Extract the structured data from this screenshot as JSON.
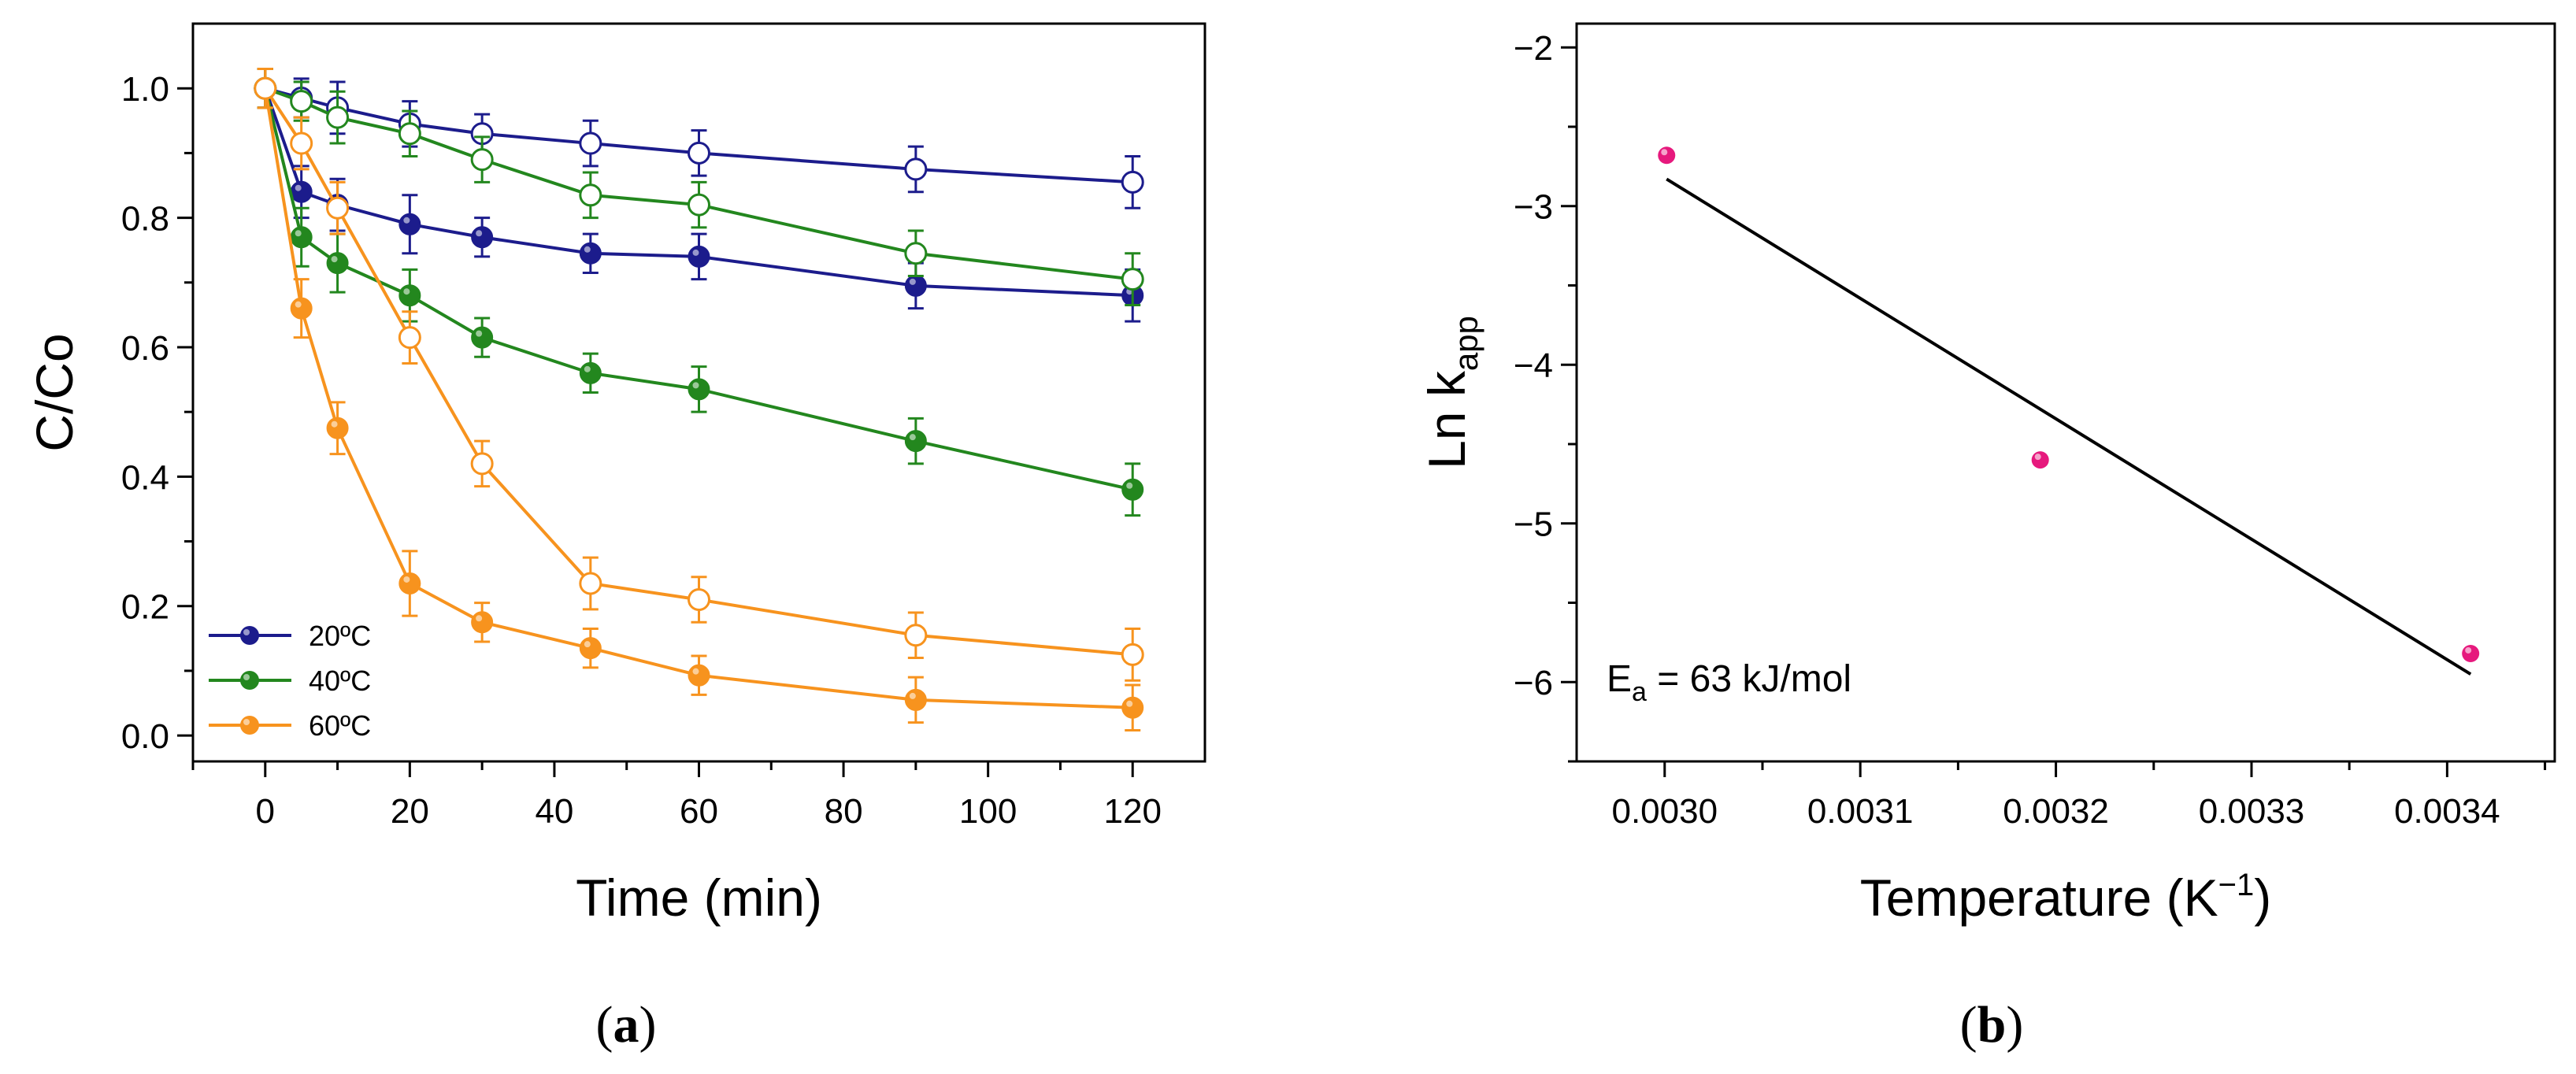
{
  "chart_data": [
    {
      "type": "line",
      "panel": "a",
      "caption_open": "(",
      "caption": "a",
      "caption_close": ")",
      "xlabel": "Time (min)",
      "ylabel": "C/Co",
      "xlim": [
        -10,
        130
      ],
      "ylim": [
        -0.04,
        1.1
      ],
      "xticks": [
        0,
        20,
        40,
        60,
        80,
        100,
        120
      ],
      "yticks": [
        0.0,
        0.2,
        0.4,
        0.6,
        0.8,
        1.0
      ],
      "x": [
        0,
        5,
        10,
        20,
        30,
        45,
        60,
        90,
        120
      ],
      "series": [
        {
          "name": "20ºC",
          "variant": "filled",
          "color": "#1c1c8c",
          "values": [
            1.0,
            0.84,
            0.82,
            0.79,
            0.77,
            0.745,
            0.74,
            0.695,
            0.68
          ],
          "errors": [
            0.03,
            0.04,
            0.04,
            0.045,
            0.03,
            0.03,
            0.035,
            0.035,
            0.04
          ]
        },
        {
          "name": "20ºC",
          "variant": "open",
          "color": "#1c1c8c",
          "values": [
            1.0,
            0.985,
            0.97,
            0.945,
            0.93,
            0.915,
            0.9,
            0.875,
            0.855
          ],
          "errors": [
            0.03,
            0.03,
            0.04,
            0.035,
            0.03,
            0.035,
            0.035,
            0.035,
            0.04
          ]
        },
        {
          "name": "40ºC",
          "variant": "filled",
          "color": "#23871e",
          "values": [
            1.0,
            0.77,
            0.73,
            0.68,
            0.615,
            0.56,
            0.535,
            0.455,
            0.38
          ],
          "errors": [
            0.03,
            0.045,
            0.045,
            0.04,
            0.03,
            0.03,
            0.035,
            0.035,
            0.04
          ]
        },
        {
          "name": "40ºC",
          "variant": "open",
          "color": "#23871e",
          "values": [
            1.0,
            0.98,
            0.955,
            0.93,
            0.89,
            0.835,
            0.82,
            0.745,
            0.705
          ],
          "errors": [
            0.03,
            0.03,
            0.04,
            0.035,
            0.035,
            0.035,
            0.035,
            0.035,
            0.04
          ]
        },
        {
          "name": "60ºC",
          "variant": "filled",
          "color": "#f7931e",
          "values": [
            1.0,
            0.66,
            0.475,
            0.235,
            0.175,
            0.135,
            0.093,
            0.055,
            0.043
          ],
          "errors": [
            0.03,
            0.045,
            0.04,
            0.05,
            0.03,
            0.03,
            0.03,
            0.035,
            0.035
          ]
        },
        {
          "name": "60ºC",
          "variant": "open",
          "color": "#f7931e",
          "values": [
            1.0,
            0.915,
            0.815,
            0.615,
            0.42,
            0.235,
            0.21,
            0.155,
            0.125
          ],
          "errors": [
            0.03,
            0.04,
            0.04,
            0.04,
            0.035,
            0.04,
            0.035,
            0.035,
            0.04
          ]
        }
      ],
      "legend": {
        "placement": "bottom-left",
        "entries": [
          {
            "label": "20ºC",
            "color": "#1c1c8c"
          },
          {
            "label": "40ºC",
            "color": "#23871e"
          },
          {
            "label": "60ºC",
            "color": "#f7931e"
          }
        ]
      }
    },
    {
      "type": "scatter",
      "panel": "b",
      "caption_open": "(",
      "caption": "b",
      "caption_close": ")",
      "xlabel": "Temperature (K",
      "xlabel_sup": "−1",
      "xlabel_end": ")",
      "ylabel": "Ln k",
      "ylabel_sub": "app",
      "xlim": [
        0.002955,
        0.003455
      ],
      "ylim": [
        -6.5,
        -1.85
      ],
      "xticks": [
        "0.0030",
        "0.0031",
        "0.0032",
        "0.0033",
        "0.0034"
      ],
      "xtick_values": [
        0.003,
        0.0031,
        0.0032,
        0.0033,
        0.0034
      ],
      "yticks": [
        "−2",
        "−3",
        "−4",
        "−5",
        "−6"
      ],
      "ytick_values": [
        -2,
        -3,
        -4,
        -5,
        -6
      ],
      "points": [
        {
          "x": 0.003001,
          "y": -2.68
        },
        {
          "x": 0.003192,
          "y": -4.6
        },
        {
          "x": 0.003412,
          "y": -5.82
        }
      ],
      "point_color": "#e6197d",
      "fit_line": {
        "x": [
          0.003001,
          0.003412
        ],
        "y": [
          -2.83,
          -5.95
        ]
      },
      "annotation": {
        "main": "E",
        "sub": "a",
        "rest": " = 63 kJ/mol"
      }
    }
  ]
}
